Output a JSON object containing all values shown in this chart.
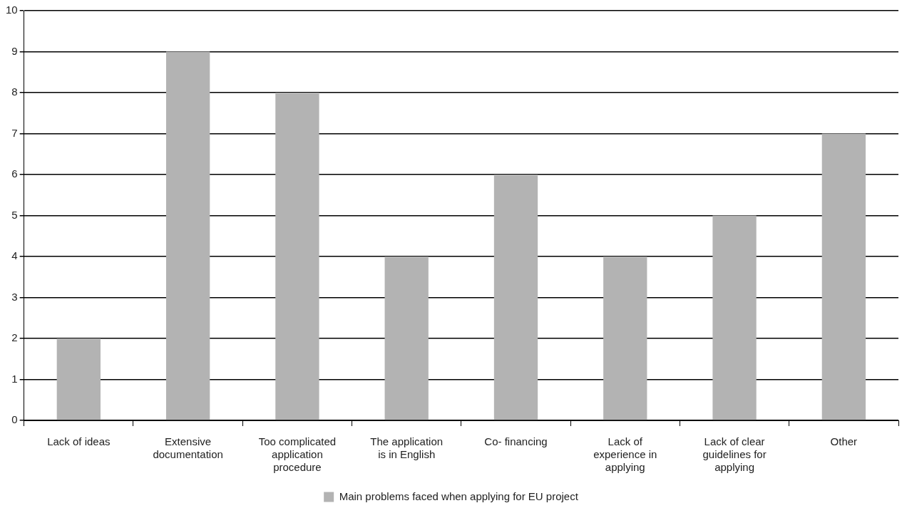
{
  "chart_data": {
    "type": "bar",
    "categories": [
      "Lack of ideas",
      "Extensive documentation",
      "Too complicated application procedure",
      "The application is in English",
      "Co- financing",
      "Lack of experience in applying",
      "Lack of clear guidelines for applying",
      "Other"
    ],
    "series": [
      {
        "name": "Main problems faced when applying for EU project",
        "color": "#b3b3b3",
        "values": [
          2,
          9,
          8,
          4,
          6,
          4,
          5,
          7
        ]
      }
    ],
    "ylim": [
      0,
      10
    ],
    "yticks": [
      0,
      1,
      2,
      3,
      4,
      5,
      6,
      7,
      8,
      9,
      10
    ],
    "grid": "y",
    "legend": "bottom"
  }
}
